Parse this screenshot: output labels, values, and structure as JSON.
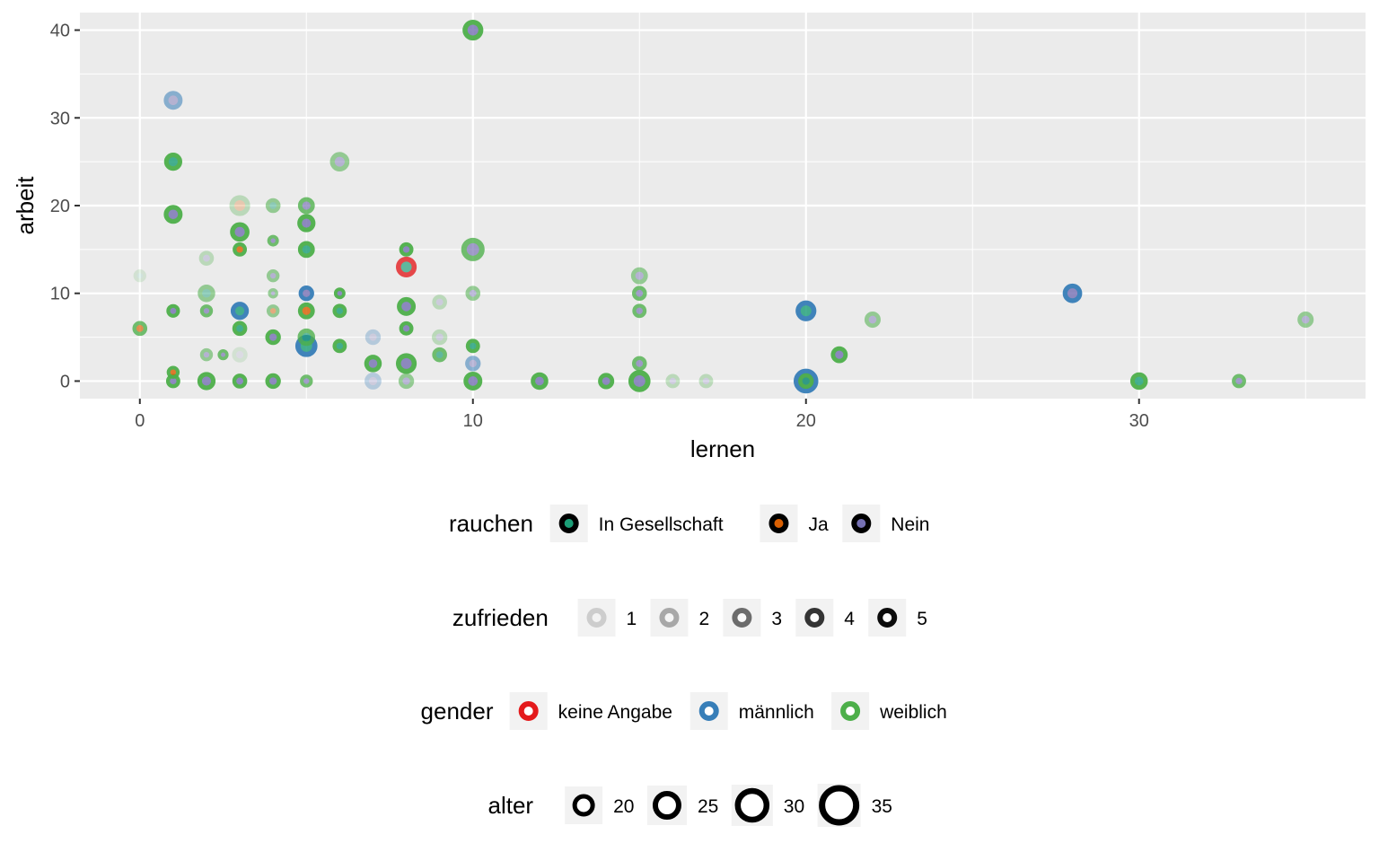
{
  "chart_data": {
    "type": "scatter",
    "xlabel": "lernen",
    "ylabel": "arbeit",
    "xlim": [
      -1.8,
      36.8
    ],
    "ylim": [
      -2,
      42
    ],
    "x_ticks": [
      0,
      10,
      20,
      30
    ],
    "y_ticks": [
      0,
      10,
      20,
      30,
      40
    ],
    "grid": true,
    "legend_position": "bottom",
    "rauchen_colors": {
      "In Gesellschaft": "#1b9e77",
      "Ja": "#d95f02",
      "Nein": "#7570b3"
    },
    "gender_colors": {
      "keine Angabe": "#e41a1c",
      "männlich": "#377eb8",
      "weiblich": "#4daf4a"
    },
    "legends": [
      {
        "title": "rauchen",
        "kind": "rauchen",
        "entries": [
          {
            "label": "In Gesellschaft",
            "color": "#1b9e77"
          },
          {
            "label": "Ja",
            "color": "#d95f02"
          },
          {
            "label": "Nein",
            "color": "#7570b3"
          }
        ]
      },
      {
        "title": "zufrieden",
        "kind": "zufrieden",
        "entries": [
          {
            "label": "1",
            "value": 1
          },
          {
            "label": "2",
            "value": 2
          },
          {
            "label": "3",
            "value": 3
          },
          {
            "label": "4",
            "value": 4
          },
          {
            "label": "5",
            "value": 5
          }
        ]
      },
      {
        "title": "gender",
        "kind": "gender",
        "entries": [
          {
            "label": "keine Angabe",
            "color": "#e41a1c"
          },
          {
            "label": "männlich",
            "color": "#377eb8"
          },
          {
            "label": "weiblich",
            "color": "#4daf4a"
          }
        ]
      },
      {
        "title": "alter",
        "kind": "alter",
        "entries": [
          {
            "label": "20",
            "value": 20
          },
          {
            "label": "25",
            "value": 25
          },
          {
            "label": "30",
            "value": 30
          },
          {
            "label": "35",
            "value": 35
          }
        ]
      }
    ],
    "points": [
      {
        "x": 10,
        "y": 40,
        "rauchen": "Nein",
        "gender": "weiblich",
        "zufrieden": 5,
        "alter": 30
      },
      {
        "x": 1,
        "y": 32,
        "rauchen": "Nein",
        "gender": "männlich",
        "zufrieden": 3,
        "alter": 27
      },
      {
        "x": 1,
        "y": 25,
        "rauchen": "In Gesellschaft",
        "gender": "weiblich",
        "zufrieden": 5,
        "alter": 26
      },
      {
        "x": 6,
        "y": 25,
        "rauchen": "Nein",
        "gender": "weiblich",
        "zufrieden": 3,
        "alter": 28
      },
      {
        "x": 1,
        "y": 19,
        "rauchen": "Nein",
        "gender": "weiblich",
        "zufrieden": 5,
        "alter": 27
      },
      {
        "x": 3,
        "y": 20,
        "rauchen": "Ja",
        "gender": "weiblich",
        "zufrieden": 2,
        "alter": 30
      },
      {
        "x": 3,
        "y": 17,
        "rauchen": "Nein",
        "gender": "weiblich",
        "zufrieden": 5,
        "alter": 28
      },
      {
        "x": 3,
        "y": 15,
        "rauchen": "Ja",
        "gender": "weiblich",
        "zufrieden": 5,
        "alter": 20
      },
      {
        "x": 4,
        "y": 20,
        "rauchen": "In Gesellschaft",
        "gender": "weiblich",
        "zufrieden": 3,
        "alter": 21
      },
      {
        "x": 4,
        "y": 16,
        "rauchen": "Nein",
        "gender": "weiblich",
        "zufrieden": 4,
        "alter": 16
      },
      {
        "x": 5,
        "y": 20,
        "rauchen": "Nein",
        "gender": "weiblich",
        "zufrieden": 4,
        "alter": 24
      },
      {
        "x": 5,
        "y": 18,
        "rauchen": "Nein",
        "gender": "weiblich",
        "zufrieden": 5,
        "alter": 26
      },
      {
        "x": 5,
        "y": 15,
        "rauchen": "In Gesellschaft",
        "gender": "weiblich",
        "zufrieden": 5,
        "alter": 24
      },
      {
        "x": 2,
        "y": 14,
        "rauchen": "Nein",
        "gender": "weiblich",
        "zufrieden": 2,
        "alter": 21
      },
      {
        "x": 0,
        "y": 12,
        "rauchen": "In Gesellschaft",
        "gender": "weiblich",
        "zufrieden": 1,
        "alter": 18
      },
      {
        "x": 0,
        "y": 6,
        "rauchen": "Ja",
        "gender": "weiblich",
        "zufrieden": 4,
        "alter": 21
      },
      {
        "x": 1,
        "y": 8,
        "rauchen": "Nein",
        "gender": "weiblich",
        "zufrieden": 5,
        "alter": 19
      },
      {
        "x": 1,
        "y": 1,
        "rauchen": "Ja",
        "gender": "weiblich",
        "zufrieden": 5,
        "alter": 18
      },
      {
        "x": 1,
        "y": 0,
        "rauchen": "Nein",
        "gender": "weiblich",
        "zufrieden": 5,
        "alter": 20
      },
      {
        "x": 2,
        "y": 10,
        "rauchen": "In Gesellschaft",
        "gender": "weiblich",
        "zufrieden": 3,
        "alter": 25
      },
      {
        "x": 2,
        "y": 8,
        "rauchen": "Nein",
        "gender": "weiblich",
        "zufrieden": 4,
        "alter": 18
      },
      {
        "x": 2,
        "y": 3,
        "rauchen": "Nein",
        "gender": "weiblich",
        "zufrieden": 3,
        "alter": 18
      },
      {
        "x": 2,
        "y": 0,
        "rauchen": "Nein",
        "gender": "weiblich",
        "zufrieden": 5,
        "alter": 26
      },
      {
        "x": 2.5,
        "y": 3,
        "rauchen": "Nein",
        "gender": "weiblich",
        "zufrieden": 4,
        "alter": 15
      },
      {
        "x": 3,
        "y": 8,
        "rauchen": "In Gesellschaft",
        "gender": "männlich",
        "zufrieden": 5,
        "alter": 26
      },
      {
        "x": 3,
        "y": 6,
        "rauchen": "In Gesellschaft",
        "gender": "weiblich",
        "zufrieden": 5,
        "alter": 21
      },
      {
        "x": 3,
        "y": 3,
        "rauchen": "Nein",
        "gender": "weiblich",
        "zufrieden": 1,
        "alter": 22
      },
      {
        "x": 3,
        "y": 0,
        "rauchen": "Nein",
        "gender": "weiblich",
        "zufrieden": 5,
        "alter": 21
      },
      {
        "x": 4,
        "y": 12,
        "rauchen": "Nein",
        "gender": "weiblich",
        "zufrieden": 3,
        "alter": 18
      },
      {
        "x": 4,
        "y": 10,
        "rauchen": "Nein",
        "gender": "weiblich",
        "zufrieden": 3,
        "alter": 14
      },
      {
        "x": 4,
        "y": 8,
        "rauchen": "Ja",
        "gender": "weiblich",
        "zufrieden": 3,
        "alter": 18
      },
      {
        "x": 4,
        "y": 5,
        "rauchen": "Nein",
        "gender": "weiblich",
        "zufrieden": 5,
        "alter": 22
      },
      {
        "x": 4,
        "y": 0,
        "rauchen": "Nein",
        "gender": "weiblich",
        "zufrieden": 5,
        "alter": 22
      },
      {
        "x": 5,
        "y": 10,
        "rauchen": "Nein",
        "gender": "männlich",
        "zufrieden": 5,
        "alter": 22
      },
      {
        "x": 5,
        "y": 8,
        "rauchen": "Ja",
        "gender": "weiblich",
        "zufrieden": 5,
        "alter": 24
      },
      {
        "x": 5,
        "y": 5,
        "rauchen": "In Gesellschaft",
        "gender": "weiblich",
        "zufrieden": 4,
        "alter": 25
      },
      {
        "x": 5,
        "y": 4,
        "rauchen": "In Gesellschaft",
        "gender": "männlich",
        "zufrieden": 5,
        "alter": 32
      },
      {
        "x": 5,
        "y": 0,
        "rauchen": "Nein",
        "gender": "weiblich",
        "zufrieden": 4,
        "alter": 18
      },
      {
        "x": 6,
        "y": 10,
        "rauchen": "Nein",
        "gender": "weiblich",
        "zufrieden": 5,
        "alter": 16
      },
      {
        "x": 6,
        "y": 8,
        "rauchen": "In Gesellschaft",
        "gender": "weiblich",
        "zufrieden": 5,
        "alter": 20
      },
      {
        "x": 6,
        "y": 4,
        "rauchen": "In Gesellschaft",
        "gender": "weiblich",
        "zufrieden": 5,
        "alter": 20
      },
      {
        "x": 7,
        "y": 5,
        "rauchen": "Nein",
        "gender": "männlich",
        "zufrieden": 2,
        "alter": 22
      },
      {
        "x": 7,
        "y": 2,
        "rauchen": "Nein",
        "gender": "weiblich",
        "zufrieden": 5,
        "alter": 25
      },
      {
        "x": 7,
        "y": 0,
        "rauchen": "Nein",
        "gender": "männlich",
        "zufrieden": 2,
        "alter": 24
      },
      {
        "x": 8,
        "y": 15,
        "rauchen": "Nein",
        "gender": "weiblich",
        "zufrieden": 5,
        "alter": 20
      },
      {
        "x": 8,
        "y": 13,
        "rauchen": "In Gesellschaft",
        "gender": "keine Angabe",
        "zufrieden": 4,
        "alter": 30
      },
      {
        "x": 8,
        "y": 8.5,
        "rauchen": "Nein",
        "gender": "weiblich",
        "zufrieden": 5,
        "alter": 27
      },
      {
        "x": 8,
        "y": 6,
        "rauchen": "Nein",
        "gender": "weiblich",
        "zufrieden": 5,
        "alter": 20
      },
      {
        "x": 8,
        "y": 2,
        "rauchen": "Nein",
        "gender": "weiblich",
        "zufrieden": 5,
        "alter": 30
      },
      {
        "x": 8,
        "y": 0,
        "rauchen": "Nein",
        "gender": "weiblich",
        "zufrieden": 3,
        "alter": 22
      },
      {
        "x": 9,
        "y": 9,
        "rauchen": "Nein",
        "gender": "weiblich",
        "zufrieden": 2,
        "alter": 21
      },
      {
        "x": 9,
        "y": 5,
        "rauchen": "Nein",
        "gender": "weiblich",
        "zufrieden": 2,
        "alter": 22
      },
      {
        "x": 9,
        "y": 3,
        "rauchen": "In Gesellschaft",
        "gender": "weiblich",
        "zufrieden": 4,
        "alter": 21
      },
      {
        "x": 10,
        "y": 15,
        "rauchen": "Nein",
        "gender": "weiblich",
        "zufrieden": 4,
        "alter": 34
      },
      {
        "x": 10,
        "y": 10,
        "rauchen": "Nein",
        "gender": "weiblich",
        "zufrieden": 3,
        "alter": 21
      },
      {
        "x": 10,
        "y": 4,
        "rauchen": "In Gesellschaft",
        "gender": "weiblich",
        "zufrieden": 5,
        "alter": 20
      },
      {
        "x": 10,
        "y": 2,
        "rauchen": "Nein",
        "gender": "männlich",
        "zufrieden": 3,
        "alter": 22
      },
      {
        "x": 10,
        "y": 0,
        "rauchen": "Nein",
        "gender": "weiblich",
        "zufrieden": 5,
        "alter": 27
      },
      {
        "x": 12,
        "y": 0,
        "rauchen": "Nein",
        "gender": "weiblich",
        "zufrieden": 5,
        "alter": 25
      },
      {
        "x": 14,
        "y": 0,
        "rauchen": "Nein",
        "gender": "weiblich",
        "zufrieden": 5,
        "alter": 23
      },
      {
        "x": 15,
        "y": 12,
        "rauchen": "Nein",
        "gender": "weiblich",
        "zufrieden": 3,
        "alter": 24
      },
      {
        "x": 15,
        "y": 10,
        "rauchen": "Nein",
        "gender": "weiblich",
        "zufrieden": 4,
        "alter": 21
      },
      {
        "x": 15,
        "y": 8,
        "rauchen": "Nein",
        "gender": "weiblich",
        "zufrieden": 4,
        "alter": 20
      },
      {
        "x": 15,
        "y": 2,
        "rauchen": "Nein",
        "gender": "weiblich",
        "zufrieden": 4,
        "alter": 21
      },
      {
        "x": 15,
        "y": 0,
        "rauchen": "Nein",
        "gender": "weiblich",
        "zufrieden": 5,
        "alter": 32
      },
      {
        "x": 16,
        "y": 0,
        "rauchen": "Nein",
        "gender": "weiblich",
        "zufrieden": 2,
        "alter": 20
      },
      {
        "x": 17,
        "y": 0,
        "rauchen": "Nein",
        "gender": "weiblich",
        "zufrieden": 2,
        "alter": 20
      },
      {
        "x": 20,
        "y": 8,
        "rauchen": "In Gesellschaft",
        "gender": "männlich",
        "zufrieden": 5,
        "alter": 30
      },
      {
        "x": 20,
        "y": 0,
        "rauchen": "Nein",
        "gender": "männlich",
        "zufrieden": 5,
        "alter": 36
      },
      {
        "x": 20,
        "y": 0,
        "rauchen": "In Gesellschaft",
        "gender": "weiblich",
        "zufrieden": 5,
        "alter": 22
      },
      {
        "x": 21,
        "y": 3,
        "rauchen": "Nein",
        "gender": "weiblich",
        "zufrieden": 5,
        "alter": 24
      },
      {
        "x": 22,
        "y": 7,
        "rauchen": "Nein",
        "gender": "weiblich",
        "zufrieden": 3,
        "alter": 23
      },
      {
        "x": 28,
        "y": 10,
        "rauchen": "Nein",
        "gender": "männlich",
        "zufrieden": 5,
        "alter": 28
      },
      {
        "x": 30,
        "y": 0,
        "rauchen": "In Gesellschaft",
        "gender": "weiblich",
        "zufrieden": 5,
        "alter": 25
      },
      {
        "x": 33,
        "y": 0,
        "rauchen": "Nein",
        "gender": "weiblich",
        "zufrieden": 4,
        "alter": 20
      },
      {
        "x": 35,
        "y": 7,
        "rauchen": "Nein",
        "gender": "weiblich",
        "zufrieden": 3,
        "alter": 23
      }
    ]
  }
}
